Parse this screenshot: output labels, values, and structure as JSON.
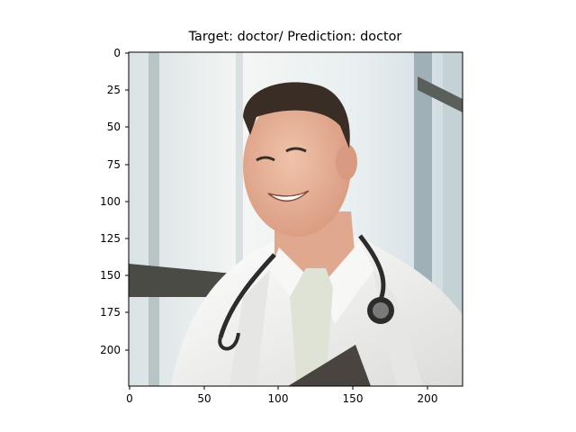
{
  "figure": {
    "title": "Target: doctor/ Prediction: doctor",
    "y_ticks": [
      "0",
      "25",
      "50",
      "75",
      "100",
      "125",
      "150",
      "175",
      "200"
    ],
    "x_ticks": [
      "0",
      "50",
      "100",
      "150",
      "200"
    ],
    "x_range": [
      0,
      224
    ],
    "y_range": [
      0,
      224
    ]
  },
  "image": {
    "subject": "smiling man in white lab coat with stethoscope, holding clipboard",
    "colors": {
      "coat": "#f2f2f0",
      "hair": "#3a2d26",
      "skin": "#e8b9a1",
      "tie": "#dfe3d5",
      "stethoscope": "#2c2c2c",
      "window_light": "#eef3f4",
      "window_frame": "#4b4b46"
    }
  }
}
